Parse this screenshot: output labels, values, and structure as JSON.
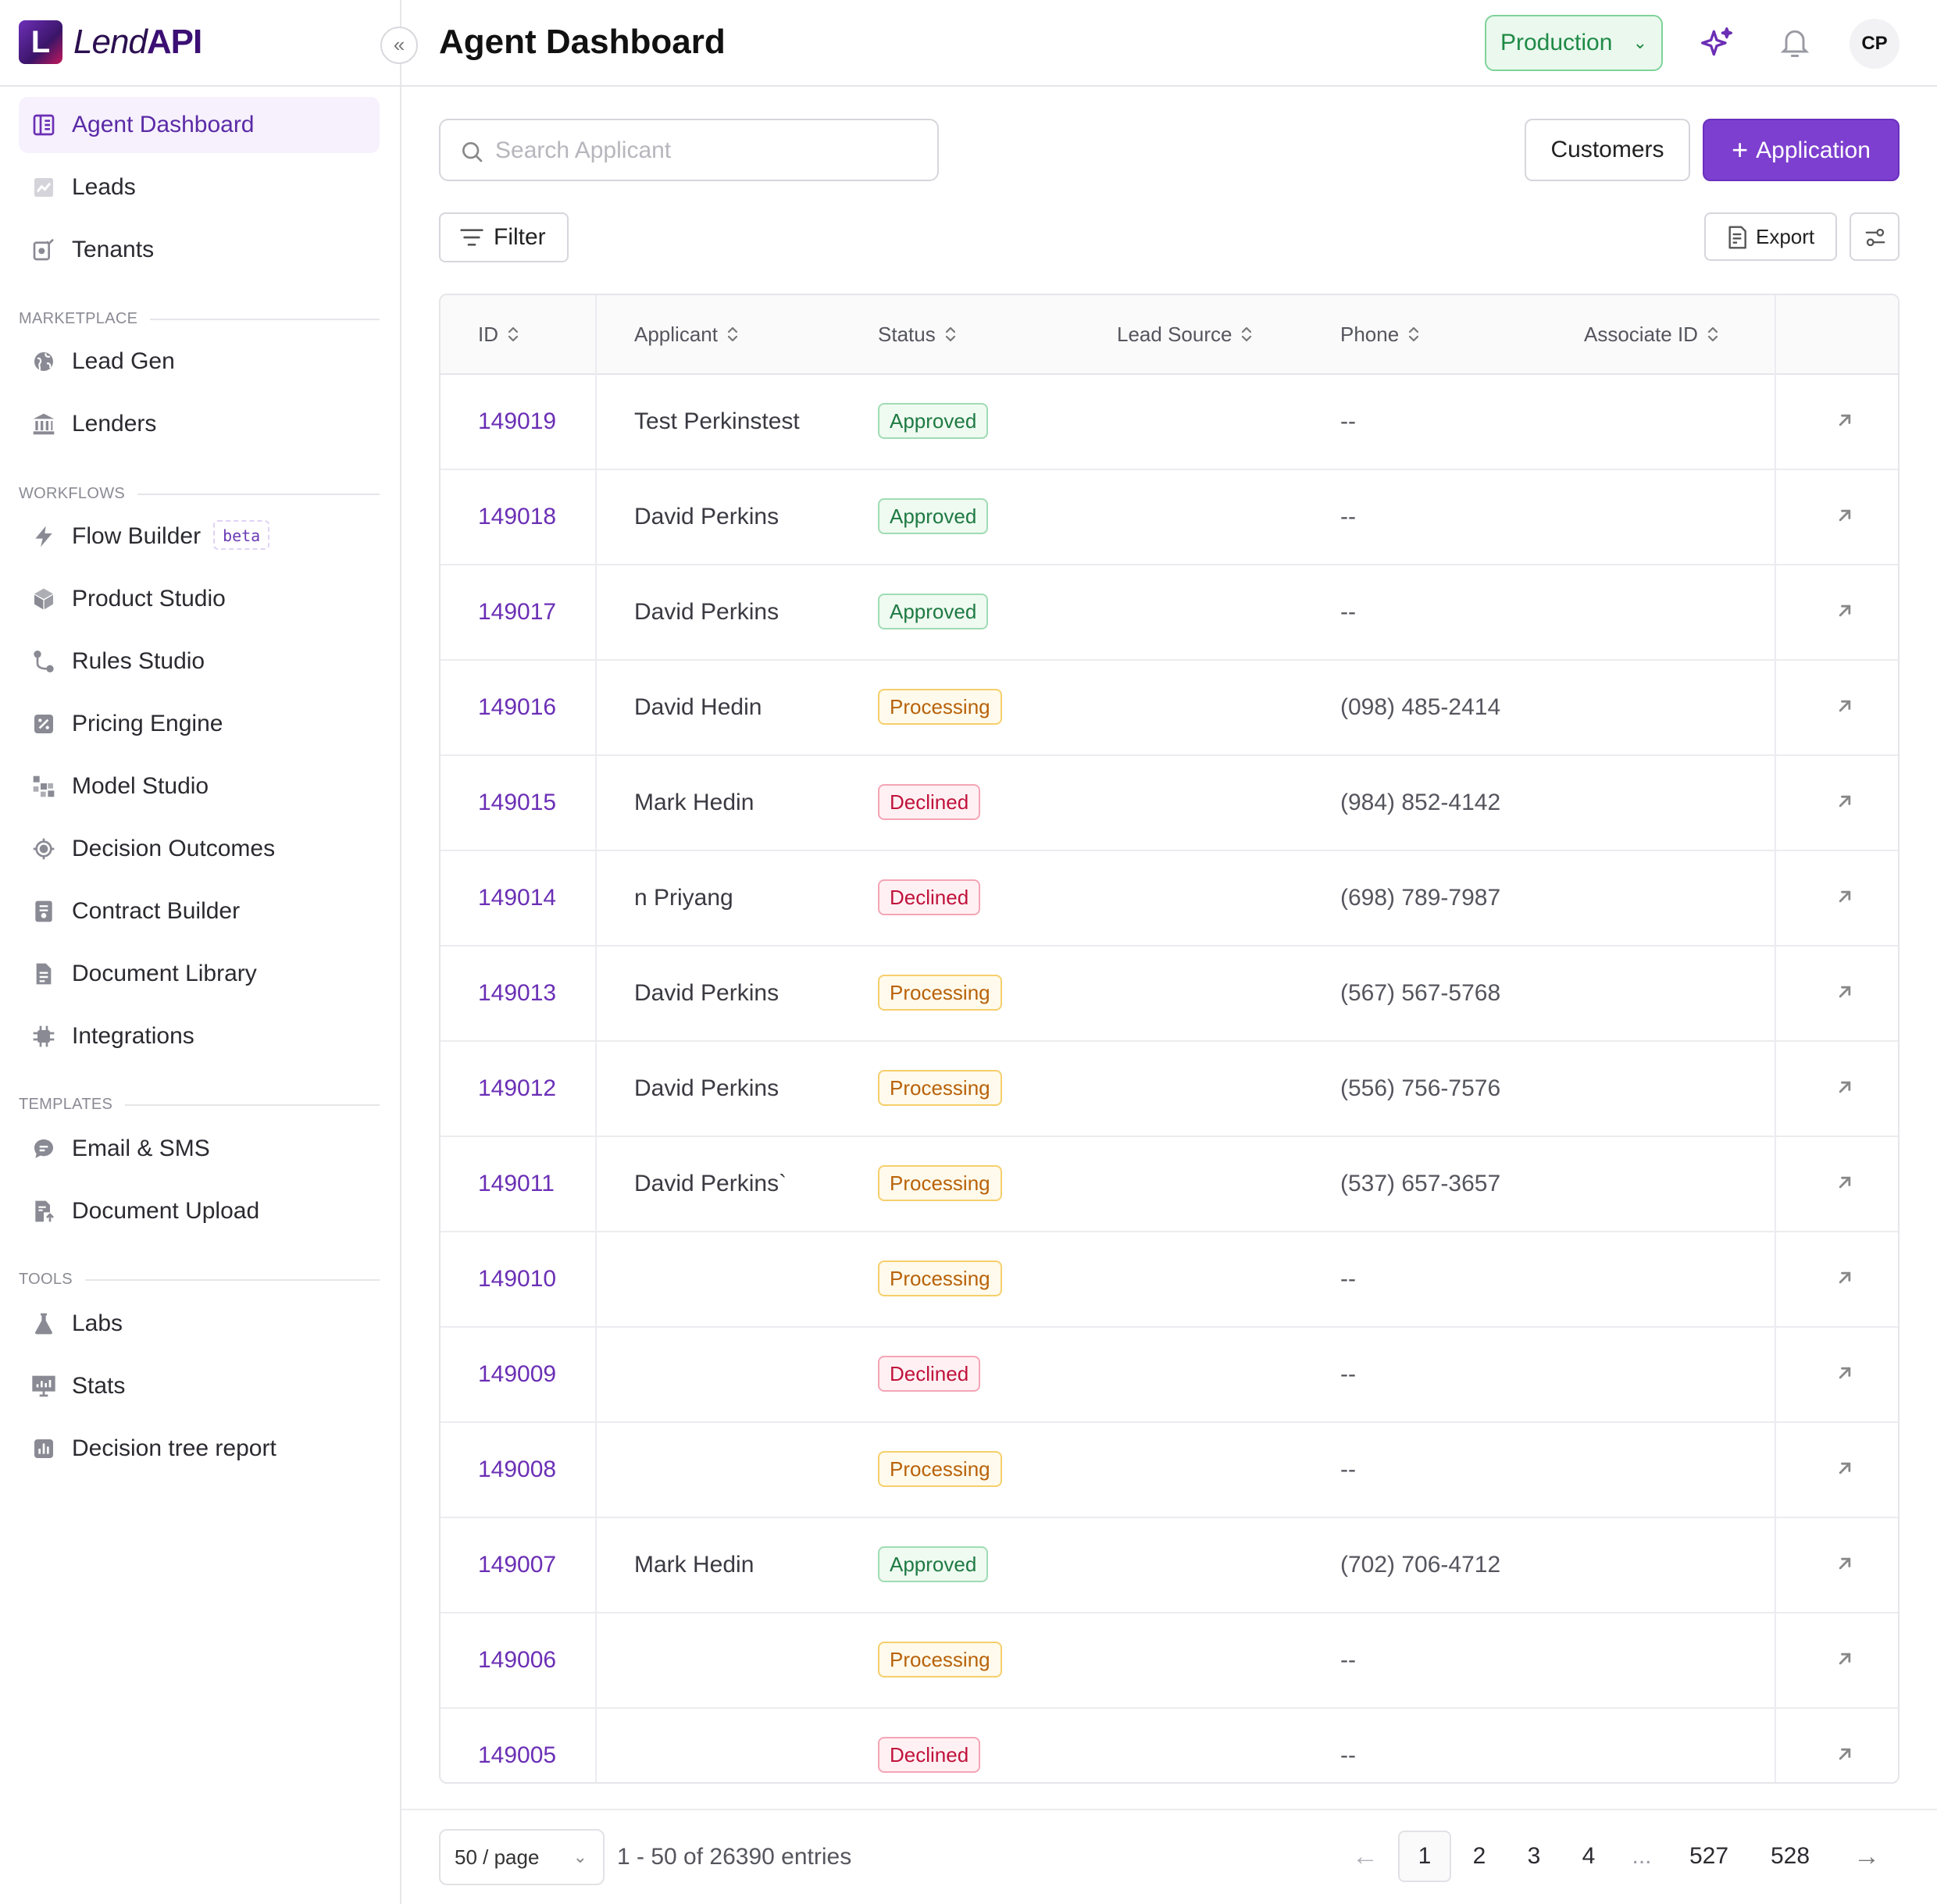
{
  "brand": {
    "logo_letter": "L",
    "name_italic": "Lend",
    "name_bold": "API"
  },
  "header": {
    "title": "Agent Dashboard",
    "environment": "Production",
    "avatar_initials": "CP"
  },
  "sidebar": {
    "items": [
      {
        "label": "Agent Dashboard",
        "icon": "dashboard-icon",
        "active": true
      },
      {
        "label": "Leads",
        "icon": "trend-chart-icon"
      },
      {
        "label": "Tenants",
        "icon": "tenants-icon"
      }
    ],
    "sections": [
      {
        "title": "MARKETPLACE",
        "items": [
          {
            "label": "Lead Gen",
            "icon": "globe-icon"
          },
          {
            "label": "Lenders",
            "icon": "bank-icon"
          }
        ]
      },
      {
        "title": "WORKFLOWS",
        "items": [
          {
            "label": "Flow Builder",
            "icon": "lightning-icon",
            "badge": "beta"
          },
          {
            "label": "Product Studio",
            "icon": "cube-icon"
          },
          {
            "label": "Rules Studio",
            "icon": "branch-icon"
          },
          {
            "label": "Pricing Engine",
            "icon": "percent-icon"
          },
          {
            "label": "Model Studio",
            "icon": "grid-icon"
          },
          {
            "label": "Decision Outcomes",
            "icon": "target-icon"
          },
          {
            "label": "Contract Builder",
            "icon": "contract-icon"
          },
          {
            "label": "Document Library",
            "icon": "document-icon"
          },
          {
            "label": "Integrations",
            "icon": "chip-icon"
          }
        ]
      },
      {
        "title": "TEMPLATES",
        "items": [
          {
            "label": "Email & SMS",
            "icon": "chat-icon"
          },
          {
            "label": "Document Upload",
            "icon": "upload-doc-icon"
          }
        ]
      },
      {
        "title": "TOOLS",
        "items": [
          {
            "label": "Labs",
            "icon": "flask-icon"
          },
          {
            "label": "Stats",
            "icon": "presentation-icon"
          },
          {
            "label": "Decision tree report",
            "icon": "bar-chart-icon"
          }
        ]
      }
    ]
  },
  "toolbar": {
    "search_placeholder": "Search Applicant",
    "customers_label": "Customers",
    "application_label": "Application",
    "filter_label": "Filter",
    "export_label": "Export"
  },
  "table": {
    "columns": [
      "ID",
      "Applicant",
      "Status",
      "Lead Source",
      "Phone",
      "Associate ID"
    ],
    "rows": [
      {
        "id": "149019",
        "applicant": "Test Perkinstest",
        "status": "Approved",
        "lead_source": "",
        "phone": "--",
        "associate_id": ""
      },
      {
        "id": "149018",
        "applicant": "David Perkins",
        "status": "Approved",
        "lead_source": "",
        "phone": "--",
        "associate_id": ""
      },
      {
        "id": "149017",
        "applicant": "David Perkins",
        "status": "Approved",
        "lead_source": "",
        "phone": "--",
        "associate_id": ""
      },
      {
        "id": "149016",
        "applicant": "David Hedin",
        "status": "Processing",
        "lead_source": "",
        "phone": "(098) 485-2414",
        "associate_id": ""
      },
      {
        "id": "149015",
        "applicant": "Mark Hedin",
        "status": "Declined",
        "lead_source": "",
        "phone": "(984) 852-4142",
        "associate_id": ""
      },
      {
        "id": "149014",
        "applicant": "n Priyang",
        "status": "Declined",
        "lead_source": "",
        "phone": "(698) 789-7987",
        "associate_id": ""
      },
      {
        "id": "149013",
        "applicant": "David Perkins",
        "status": "Processing",
        "lead_source": "",
        "phone": "(567) 567-5768",
        "associate_id": ""
      },
      {
        "id": "149012",
        "applicant": "David Perkins",
        "status": "Processing",
        "lead_source": "",
        "phone": "(556) 756-7576",
        "associate_id": ""
      },
      {
        "id": "149011",
        "applicant": "David Perkins`",
        "status": "Processing",
        "lead_source": "",
        "phone": "(537) 657-3657",
        "associate_id": ""
      },
      {
        "id": "149010",
        "applicant": "",
        "status": "Processing",
        "lead_source": "",
        "phone": "--",
        "associate_id": ""
      },
      {
        "id": "149009",
        "applicant": "",
        "status": "Declined",
        "lead_source": "",
        "phone": "--",
        "associate_id": ""
      },
      {
        "id": "149008",
        "applicant": "",
        "status": "Processing",
        "lead_source": "",
        "phone": "--",
        "associate_id": ""
      },
      {
        "id": "149007",
        "applicant": "Mark Hedin",
        "status": "Approved",
        "lead_source": "",
        "phone": "(702) 706-4712",
        "associate_id": ""
      },
      {
        "id": "149006",
        "applicant": "",
        "status": "Processing",
        "lead_source": "",
        "phone": "--",
        "associate_id": ""
      },
      {
        "id": "149005",
        "applicant": "",
        "status": "Declined",
        "lead_source": "",
        "phone": "--",
        "associate_id": ""
      }
    ]
  },
  "footer": {
    "page_size": "50 / page",
    "entries_text": "1 - 50 of 26390 entries",
    "pages": [
      "1",
      "2",
      "3",
      "4",
      "...",
      "527",
      "528"
    ],
    "current_page": "1"
  },
  "colors": {
    "accent": "#7d3fcf",
    "approved": "#1e7a42",
    "processing": "#b8620a",
    "declined": "#c0123c",
    "environment": "#1f8a46"
  }
}
